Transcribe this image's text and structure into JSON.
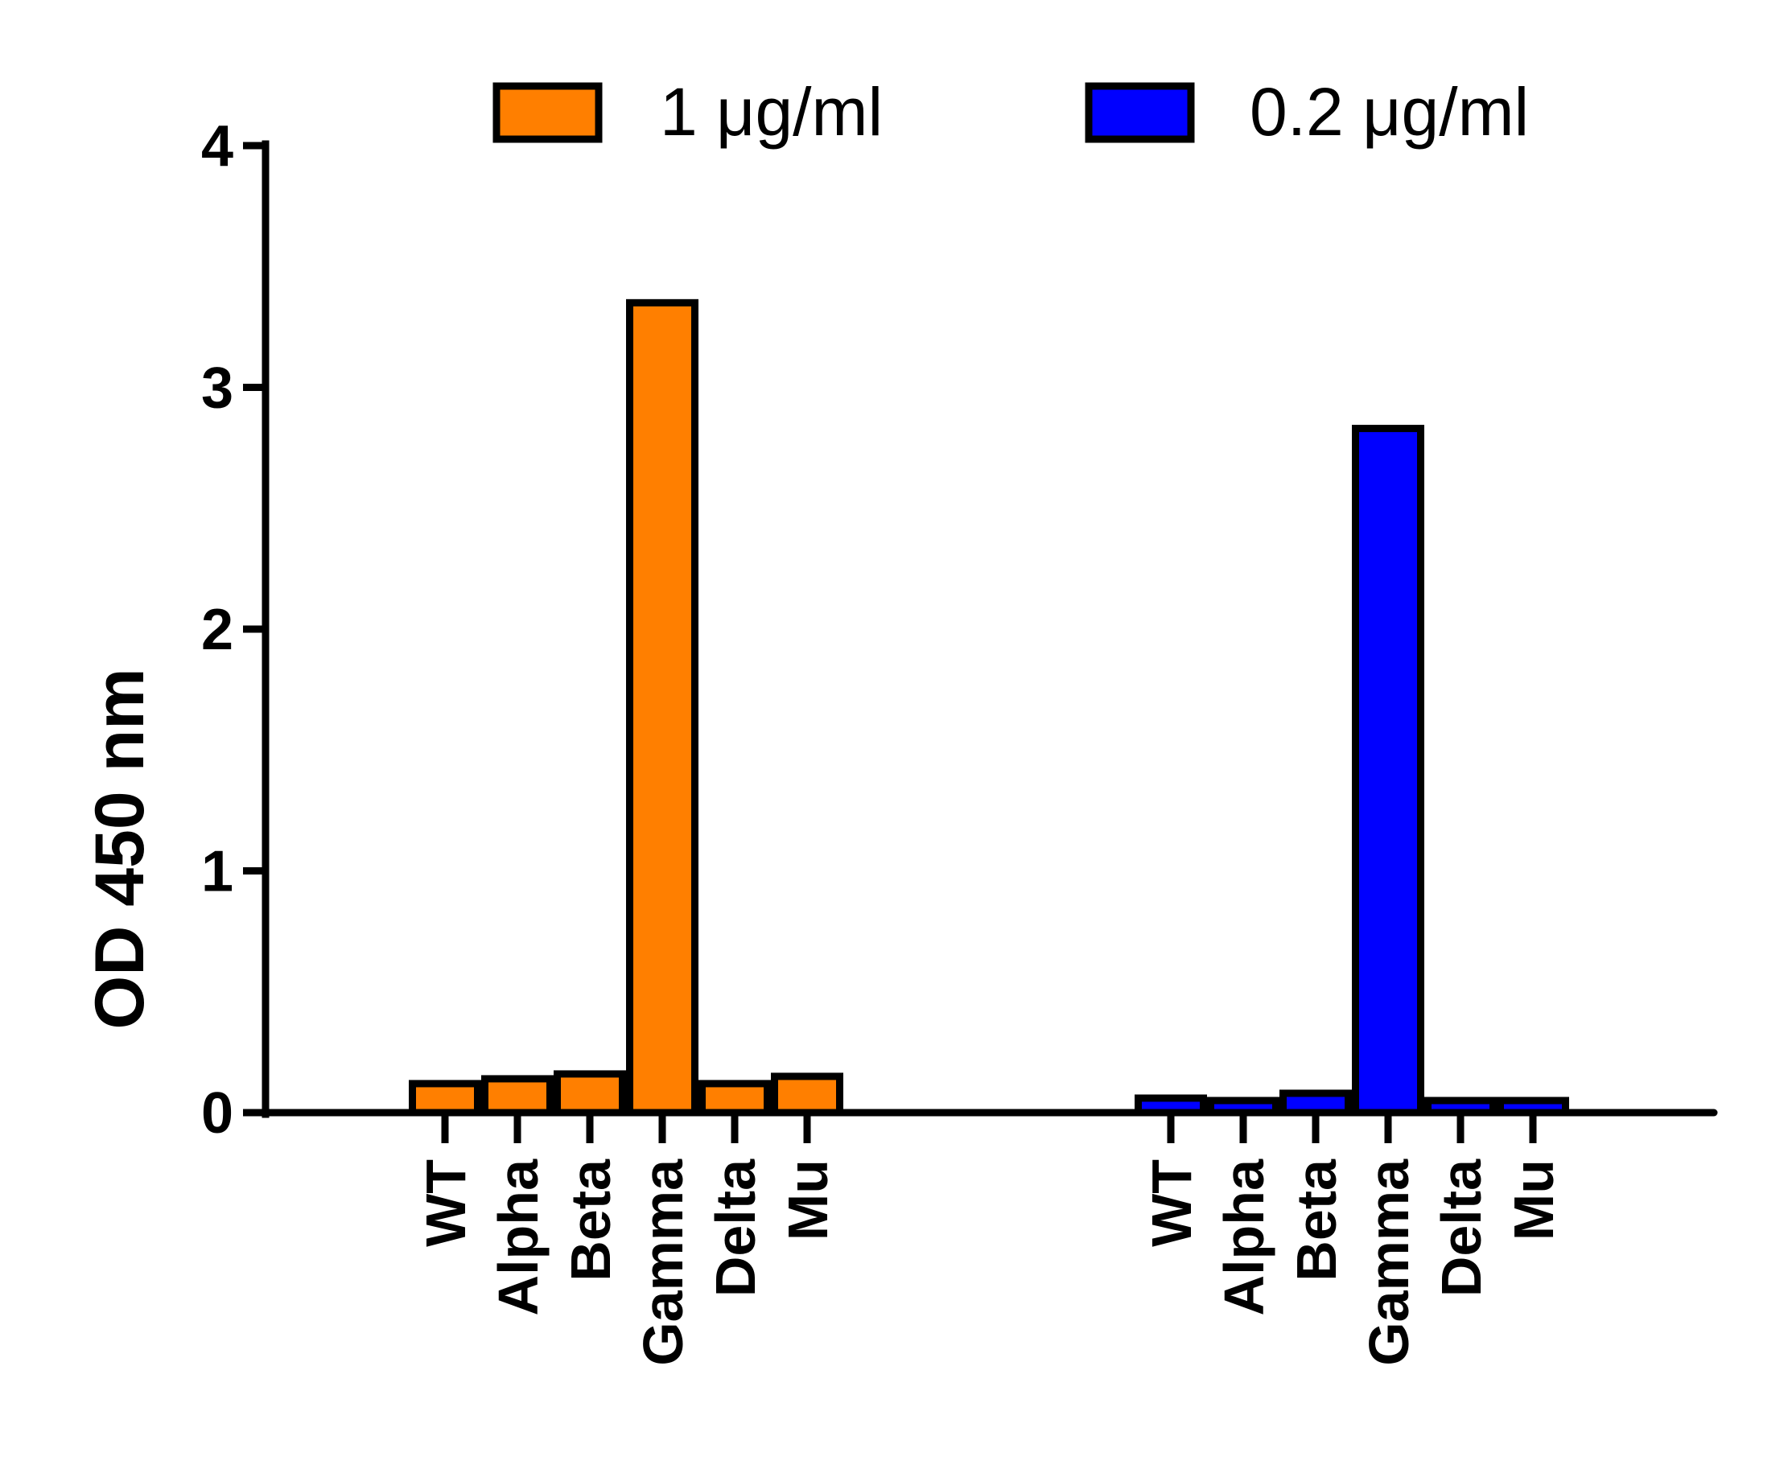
{
  "chart_data": {
    "type": "bar",
    "ylabel": "OD 450 nm",
    "ylim": [
      0,
      4
    ],
    "yticks": [
      0,
      1,
      2,
      3,
      4
    ],
    "ytick_labels": [
      "0",
      "1",
      "2",
      "3",
      "4"
    ],
    "categories": [
      "WT",
      "Alpha",
      "Beta",
      "Gamma",
      "Delta",
      "Mu"
    ],
    "grid": false,
    "legend_position": "top",
    "series": [
      {
        "name": "1 μg/ml",
        "color": "#FF7F00",
        "values": [
          0.12,
          0.14,
          0.16,
          3.35,
          0.12,
          0.15
        ]
      },
      {
        "name": "0.2 μg/ml",
        "color": "#0000FF",
        "values": [
          0.06,
          0.05,
          0.08,
          2.83,
          0.05,
          0.05
        ]
      }
    ]
  }
}
